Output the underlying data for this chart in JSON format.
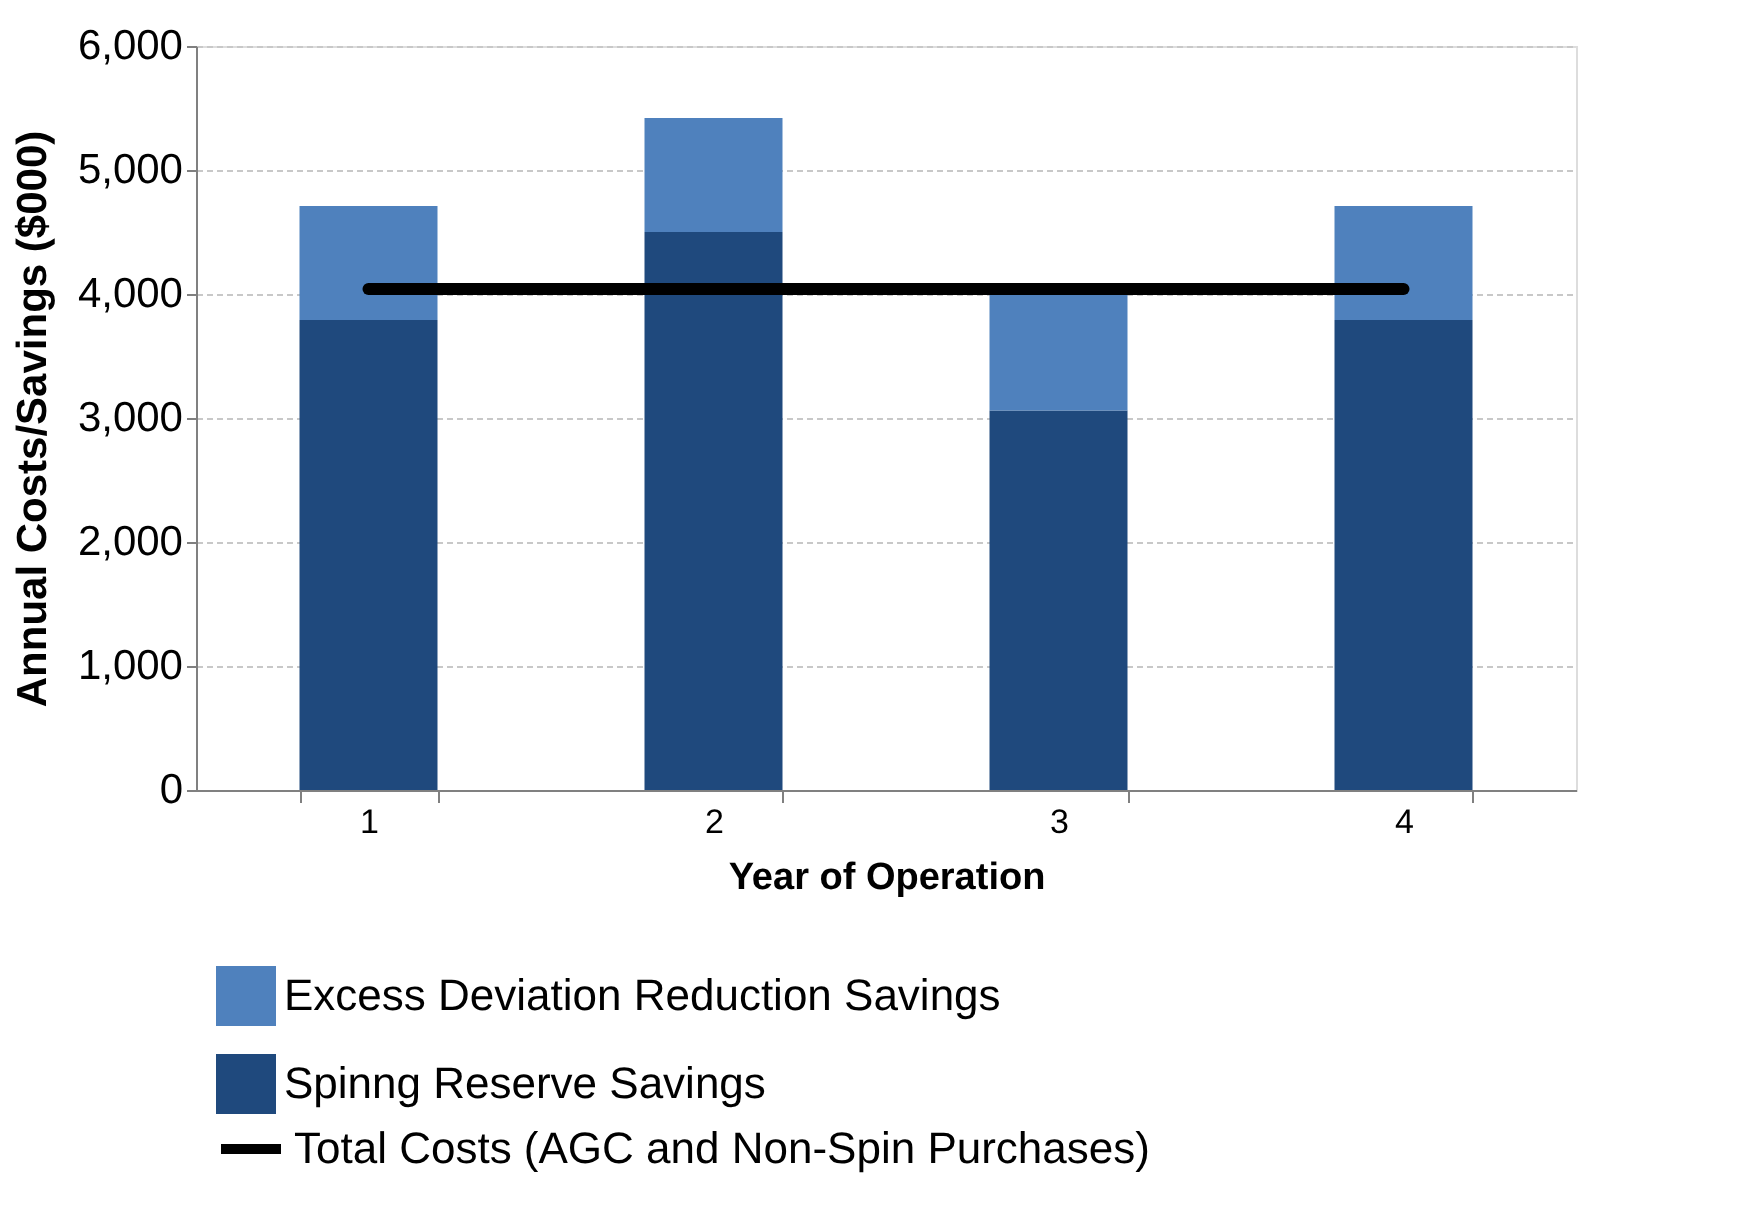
{
  "chart_data": {
    "type": "bar",
    "stacked": true,
    "xlabel": "Year of Operation",
    "ylabel": "Annual Costs/Savings ($000)",
    "categories": [
      "1",
      "2",
      "3",
      "4"
    ],
    "series": [
      {
        "name": "Spinng Reserve Savings",
        "color": "#1f497d",
        "values": [
          3790,
          4500,
          3060,
          3790
        ]
      },
      {
        "name": "Excess Deviation Reduction Savings",
        "color": "#4f81bd",
        "values": [
          920,
          920,
          940,
          920
        ]
      },
      {
        "name": "Total Costs (AGC and Non-Spin Purchases)",
        "type": "line",
        "color": "#000000",
        "values": [
          4040,
          4040,
          4040,
          4040
        ]
      }
    ],
    "ylim": [
      0,
      6000
    ],
    "yticks": [
      0,
      {
        "value": 1000,
        "label": "1,000"
      },
      {
        "value": 2000,
        "label": "2,000"
      },
      {
        "value": 3000,
        "label": "3,000"
      },
      {
        "value": 4000,
        "label": "4,000"
      },
      {
        "value": 5000,
        "label": "5,000"
      },
      {
        "value": 6000,
        "label": "6,000"
      }
    ],
    "grid": "y",
    "legend": "bottom"
  }
}
